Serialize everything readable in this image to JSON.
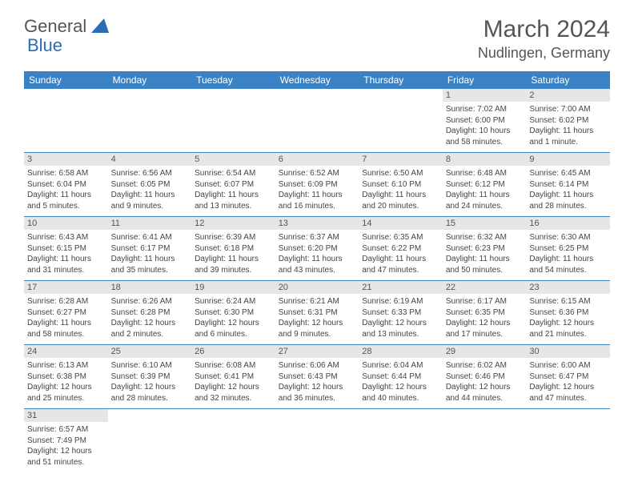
{
  "logo": {
    "part1": "General",
    "part2": "Blue"
  },
  "title": "March 2024",
  "location": "Nudlingen, Germany",
  "colors": {
    "header_bg": "#3a82c4",
    "header_text": "#ffffff",
    "daynum_bg": "#e6e6e6",
    "row_border": "#3a82c4",
    "logo_blue": "#2a6db5",
    "text": "#555555"
  },
  "weekdays": [
    "Sunday",
    "Monday",
    "Tuesday",
    "Wednesday",
    "Thursday",
    "Friday",
    "Saturday"
  ],
  "weeks": [
    [
      null,
      null,
      null,
      null,
      null,
      {
        "n": "1",
        "sr": "Sunrise: 7:02 AM",
        "ss": "Sunset: 6:00 PM",
        "d1": "Daylight: 10 hours",
        "d2": "and 58 minutes."
      },
      {
        "n": "2",
        "sr": "Sunrise: 7:00 AM",
        "ss": "Sunset: 6:02 PM",
        "d1": "Daylight: 11 hours",
        "d2": "and 1 minute."
      }
    ],
    [
      {
        "n": "3",
        "sr": "Sunrise: 6:58 AM",
        "ss": "Sunset: 6:04 PM",
        "d1": "Daylight: 11 hours",
        "d2": "and 5 minutes."
      },
      {
        "n": "4",
        "sr": "Sunrise: 6:56 AM",
        "ss": "Sunset: 6:05 PM",
        "d1": "Daylight: 11 hours",
        "d2": "and 9 minutes."
      },
      {
        "n": "5",
        "sr": "Sunrise: 6:54 AM",
        "ss": "Sunset: 6:07 PM",
        "d1": "Daylight: 11 hours",
        "d2": "and 13 minutes."
      },
      {
        "n": "6",
        "sr": "Sunrise: 6:52 AM",
        "ss": "Sunset: 6:09 PM",
        "d1": "Daylight: 11 hours",
        "d2": "and 16 minutes."
      },
      {
        "n": "7",
        "sr": "Sunrise: 6:50 AM",
        "ss": "Sunset: 6:10 PM",
        "d1": "Daylight: 11 hours",
        "d2": "and 20 minutes."
      },
      {
        "n": "8",
        "sr": "Sunrise: 6:48 AM",
        "ss": "Sunset: 6:12 PM",
        "d1": "Daylight: 11 hours",
        "d2": "and 24 minutes."
      },
      {
        "n": "9",
        "sr": "Sunrise: 6:45 AM",
        "ss": "Sunset: 6:14 PM",
        "d1": "Daylight: 11 hours",
        "d2": "and 28 minutes."
      }
    ],
    [
      {
        "n": "10",
        "sr": "Sunrise: 6:43 AM",
        "ss": "Sunset: 6:15 PM",
        "d1": "Daylight: 11 hours",
        "d2": "and 31 minutes."
      },
      {
        "n": "11",
        "sr": "Sunrise: 6:41 AM",
        "ss": "Sunset: 6:17 PM",
        "d1": "Daylight: 11 hours",
        "d2": "and 35 minutes."
      },
      {
        "n": "12",
        "sr": "Sunrise: 6:39 AM",
        "ss": "Sunset: 6:18 PM",
        "d1": "Daylight: 11 hours",
        "d2": "and 39 minutes."
      },
      {
        "n": "13",
        "sr": "Sunrise: 6:37 AM",
        "ss": "Sunset: 6:20 PM",
        "d1": "Daylight: 11 hours",
        "d2": "and 43 minutes."
      },
      {
        "n": "14",
        "sr": "Sunrise: 6:35 AM",
        "ss": "Sunset: 6:22 PM",
        "d1": "Daylight: 11 hours",
        "d2": "and 47 minutes."
      },
      {
        "n": "15",
        "sr": "Sunrise: 6:32 AM",
        "ss": "Sunset: 6:23 PM",
        "d1": "Daylight: 11 hours",
        "d2": "and 50 minutes."
      },
      {
        "n": "16",
        "sr": "Sunrise: 6:30 AM",
        "ss": "Sunset: 6:25 PM",
        "d1": "Daylight: 11 hours",
        "d2": "and 54 minutes."
      }
    ],
    [
      {
        "n": "17",
        "sr": "Sunrise: 6:28 AM",
        "ss": "Sunset: 6:27 PM",
        "d1": "Daylight: 11 hours",
        "d2": "and 58 minutes."
      },
      {
        "n": "18",
        "sr": "Sunrise: 6:26 AM",
        "ss": "Sunset: 6:28 PM",
        "d1": "Daylight: 12 hours",
        "d2": "and 2 minutes."
      },
      {
        "n": "19",
        "sr": "Sunrise: 6:24 AM",
        "ss": "Sunset: 6:30 PM",
        "d1": "Daylight: 12 hours",
        "d2": "and 6 minutes."
      },
      {
        "n": "20",
        "sr": "Sunrise: 6:21 AM",
        "ss": "Sunset: 6:31 PM",
        "d1": "Daylight: 12 hours",
        "d2": "and 9 minutes."
      },
      {
        "n": "21",
        "sr": "Sunrise: 6:19 AM",
        "ss": "Sunset: 6:33 PM",
        "d1": "Daylight: 12 hours",
        "d2": "and 13 minutes."
      },
      {
        "n": "22",
        "sr": "Sunrise: 6:17 AM",
        "ss": "Sunset: 6:35 PM",
        "d1": "Daylight: 12 hours",
        "d2": "and 17 minutes."
      },
      {
        "n": "23",
        "sr": "Sunrise: 6:15 AM",
        "ss": "Sunset: 6:36 PM",
        "d1": "Daylight: 12 hours",
        "d2": "and 21 minutes."
      }
    ],
    [
      {
        "n": "24",
        "sr": "Sunrise: 6:13 AM",
        "ss": "Sunset: 6:38 PM",
        "d1": "Daylight: 12 hours",
        "d2": "and 25 minutes."
      },
      {
        "n": "25",
        "sr": "Sunrise: 6:10 AM",
        "ss": "Sunset: 6:39 PM",
        "d1": "Daylight: 12 hours",
        "d2": "and 28 minutes."
      },
      {
        "n": "26",
        "sr": "Sunrise: 6:08 AM",
        "ss": "Sunset: 6:41 PM",
        "d1": "Daylight: 12 hours",
        "d2": "and 32 minutes."
      },
      {
        "n": "27",
        "sr": "Sunrise: 6:06 AM",
        "ss": "Sunset: 6:43 PM",
        "d1": "Daylight: 12 hours",
        "d2": "and 36 minutes."
      },
      {
        "n": "28",
        "sr": "Sunrise: 6:04 AM",
        "ss": "Sunset: 6:44 PM",
        "d1": "Daylight: 12 hours",
        "d2": "and 40 minutes."
      },
      {
        "n": "29",
        "sr": "Sunrise: 6:02 AM",
        "ss": "Sunset: 6:46 PM",
        "d1": "Daylight: 12 hours",
        "d2": "and 44 minutes."
      },
      {
        "n": "30",
        "sr": "Sunrise: 6:00 AM",
        "ss": "Sunset: 6:47 PM",
        "d1": "Daylight: 12 hours",
        "d2": "and 47 minutes."
      }
    ],
    [
      {
        "n": "31",
        "sr": "Sunrise: 6:57 AM",
        "ss": "Sunset: 7:49 PM",
        "d1": "Daylight: 12 hours",
        "d2": "and 51 minutes."
      },
      null,
      null,
      null,
      null,
      null,
      null
    ]
  ]
}
